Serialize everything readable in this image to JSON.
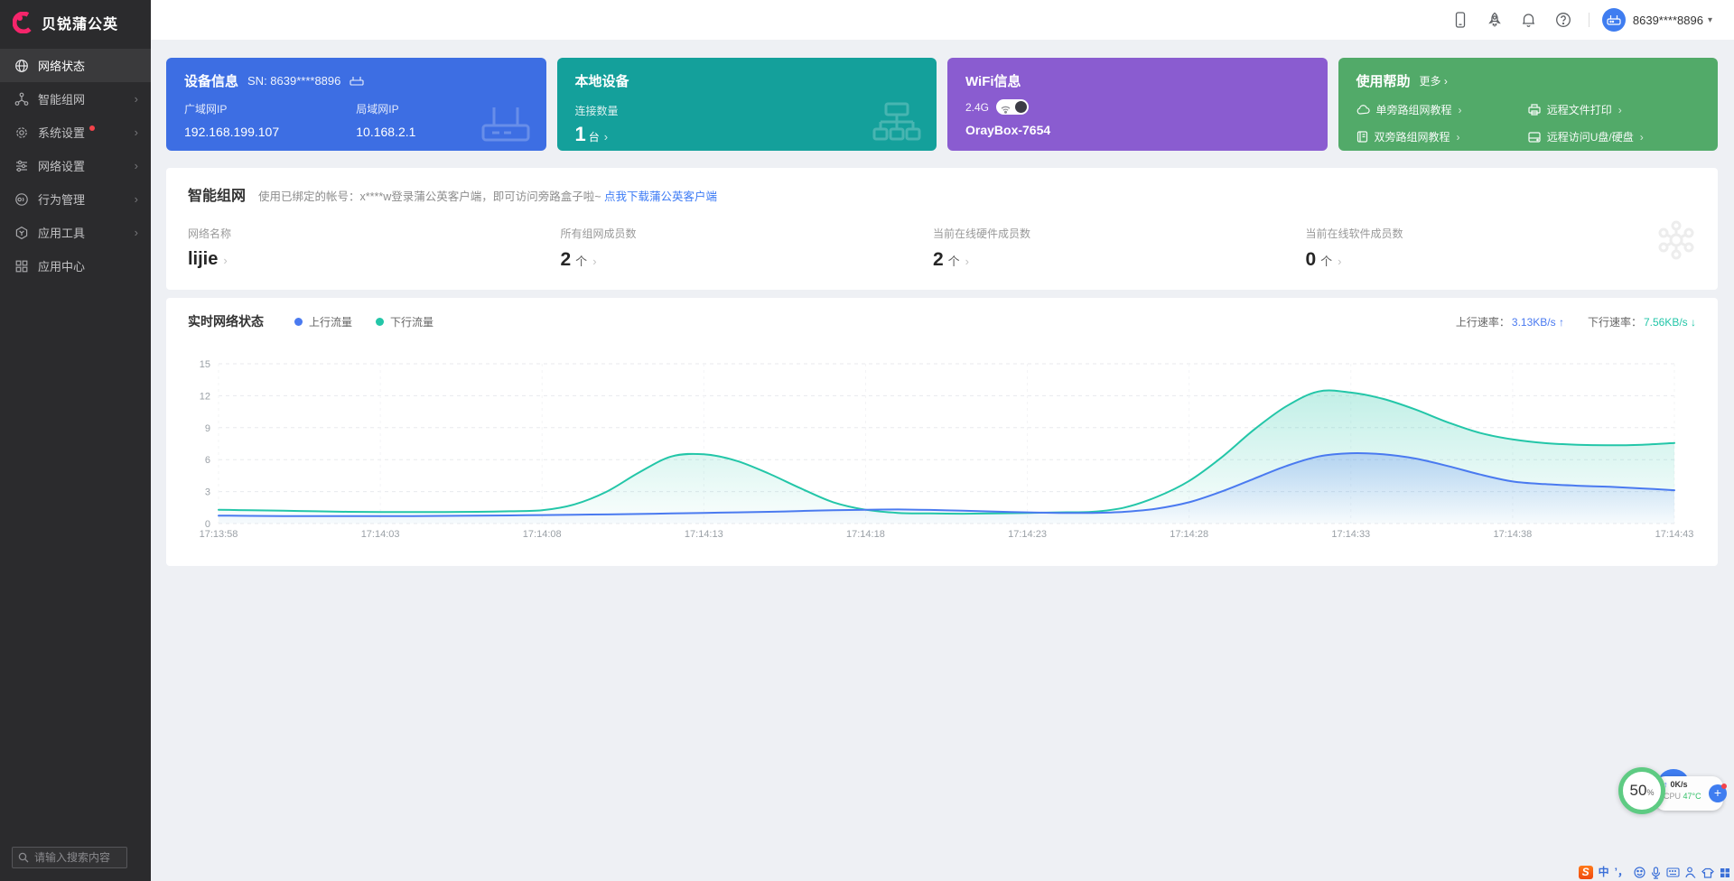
{
  "icons": {
    "chevron": "›",
    "caret": "▾",
    "up_arrow": "↑",
    "down_arrow": "↓",
    "plus": "+"
  },
  "sidebar": {
    "logo_text": "贝锐蒲公英",
    "items": [
      {
        "label": "网络状态",
        "active": true,
        "arrow": false,
        "badge": false
      },
      {
        "label": "智能组网",
        "active": false,
        "arrow": true,
        "badge": false
      },
      {
        "label": "系统设置",
        "active": false,
        "arrow": true,
        "badge": true
      },
      {
        "label": "网络设置",
        "active": false,
        "arrow": true,
        "badge": false
      },
      {
        "label": "行为管理",
        "active": false,
        "arrow": true,
        "badge": false
      },
      {
        "label": "应用工具",
        "active": false,
        "arrow": true,
        "badge": false
      },
      {
        "label": "应用中心",
        "active": false,
        "arrow": false,
        "badge": false
      }
    ],
    "search_placeholder": "请输入搜索内容"
  },
  "header": {
    "account": "8639****8896"
  },
  "cards": {
    "device": {
      "title": "设备信息",
      "sn": "SN: 8639****8896",
      "wan_label": "广域网IP",
      "wan_ip": "192.168.199.107",
      "lan_label": "局域网IP",
      "lan_ip": "10.168.2.1",
      "color": "#3d6ee3"
    },
    "local": {
      "title": "本地设备",
      "count_label": "连接数量",
      "count_value": "1",
      "count_unit": "台",
      "color": "#14a09b"
    },
    "wifi": {
      "title": "WiFi信息",
      "band": "2.4G",
      "ssid": "OrayBox-7654",
      "color": "#8a5cd0"
    },
    "help": {
      "title": "使用帮助",
      "more": "更多",
      "color": "#52aa69",
      "links": [
        {
          "label": "单旁路组网教程"
        },
        {
          "label": "远程文件打印"
        },
        {
          "label": "双旁路组网教程"
        },
        {
          "label": "远程访问U盘/硬盘"
        }
      ]
    }
  },
  "smart_network": {
    "title": "智能组网",
    "description": "使用已绑定的帐号：x****w登录蒲公英客户端，即可访问旁路盒子啦~ ",
    "download_link": "点我下载蒲公英客户端",
    "stats": [
      {
        "label": "网络名称",
        "value": "lijie",
        "unit": ""
      },
      {
        "label": "所有组网成员数",
        "value": "2",
        "unit": "个"
      },
      {
        "label": "当前在线硬件成员数",
        "value": "2",
        "unit": "个"
      },
      {
        "label": "当前在线软件成员数",
        "value": "0",
        "unit": "个"
      }
    ]
  },
  "realtime": {
    "title": "实时网络状态",
    "up_rate_label": "上行速率：",
    "up_rate": "3.13KB/s",
    "down_rate_label": "下行速率：",
    "down_rate": "7.56KB/s"
  },
  "chart_data": {
    "type": "area",
    "title": "实时网络状态",
    "unit": "KB/s",
    "ylim": [
      0,
      15
    ],
    "yticks": [
      0,
      3,
      6,
      9,
      12,
      15
    ],
    "x_tick_labels": [
      "17:13:58",
      "17:14:03",
      "17:14:08",
      "17:14:13",
      "17:14:18",
      "17:14:23",
      "17:14:28",
      "17:14:33",
      "17:14:38",
      "17:14:43"
    ],
    "x_step_seconds": 1,
    "grid": true,
    "legend_position": "top",
    "series": [
      {
        "name": "上行流量",
        "color": "#4a7af0",
        "values": [
          0.75,
          0.72,
          0.7,
          0.7,
          0.7,
          0.7,
          0.7,
          0.72,
          0.74,
          0.76,
          0.8,
          0.83,
          0.86,
          0.9,
          0.95,
          1.0,
          1.05,
          1.1,
          1.18,
          1.25,
          1.3,
          1.32,
          1.28,
          1.2,
          1.12,
          1.05,
          1.0,
          1.0,
          1.1,
          1.4,
          2.0,
          3.0,
          4.2,
          5.4,
          6.3,
          6.6,
          6.5,
          6.1,
          5.4,
          4.6,
          3.95,
          3.7,
          3.55,
          3.45,
          3.3,
          3.13
        ]
      },
      {
        "name": "下行流量",
        "color": "#23c6a8",
        "values": [
          1.3,
          1.25,
          1.2,
          1.15,
          1.1,
          1.08,
          1.08,
          1.08,
          1.1,
          1.15,
          1.25,
          1.8,
          3.0,
          4.8,
          6.3,
          6.5,
          5.9,
          4.7,
          3.3,
          2.0,
          1.3,
          1.0,
          0.95,
          0.92,
          0.95,
          1.0,
          1.05,
          1.1,
          1.5,
          2.5,
          4.0,
          6.2,
          8.8,
          11.0,
          12.4,
          12.3,
          11.7,
          10.7,
          9.5,
          8.5,
          7.9,
          7.55,
          7.4,
          7.35,
          7.4,
          7.56
        ]
      }
    ]
  },
  "overlay": {
    "percent_value": "50",
    "percent_unit": "%",
    "net_up": "0K/s",
    "cpu_label": "CPU",
    "cpu_temp": "47°C"
  },
  "taskbar": {
    "logo": "S",
    "mode": "中",
    "punct": "’，"
  }
}
